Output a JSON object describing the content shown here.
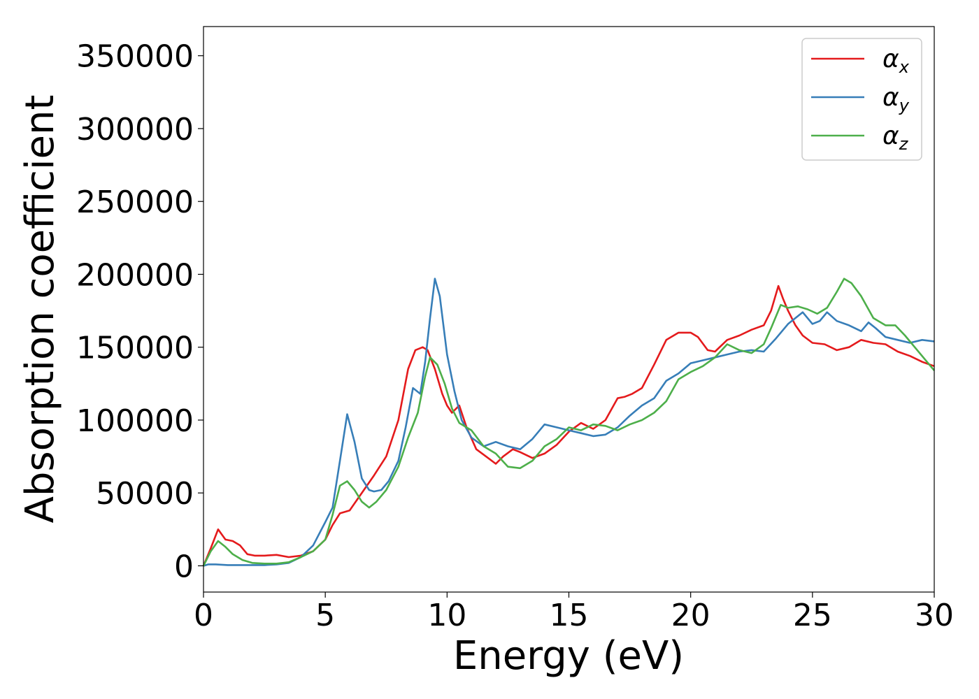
{
  "chart_data": {
    "type": "line",
    "xlabel": "Energy (eV)",
    "ylabel": "Absorption coefficient",
    "xlim": [
      0,
      30
    ],
    "ylim": [
      -18000,
      370000
    ],
    "xticks": [
      0,
      5,
      10,
      15,
      20,
      25,
      30
    ],
    "yticks": [
      0,
      50000,
      100000,
      150000,
      200000,
      250000,
      300000,
      350000
    ],
    "grid": false,
    "legend_position": "top-right",
    "series": [
      {
        "name": "α_x",
        "name_base": "α",
        "name_sub": "x",
        "color": "#e41a1c",
        "x": [
          0,
          0.3,
          0.6,
          0.9,
          1.2,
          1.5,
          1.8,
          2.1,
          2.5,
          3.0,
          3.5,
          4.0,
          4.5,
          5.0,
          5.3,
          5.6,
          6.0,
          6.5,
          7.0,
          7.5,
          8.0,
          8.4,
          8.7,
          9.0,
          9.2,
          9.5,
          9.8,
          10.0,
          10.2,
          10.5,
          10.8,
          11.2,
          11.6,
          12.0,
          12.3,
          12.7,
          13.0,
          13.5,
          14.0,
          14.5,
          15.0,
          15.5,
          16.0,
          16.5,
          17.0,
          17.3,
          17.6,
          18.0,
          18.5,
          19.0,
          19.5,
          20.0,
          20.3,
          20.7,
          21.0,
          21.5,
          22.0,
          22.5,
          23.0,
          23.3,
          23.6,
          23.8,
          24.0,
          24.3,
          24.6,
          25.0,
          25.5,
          26.0,
          26.5,
          27.0,
          27.5,
          28.0,
          28.5,
          29.0,
          29.5,
          30.0
        ],
        "y": [
          0,
          12000,
          25000,
          18000,
          17000,
          14000,
          8000,
          7000,
          7000,
          7500,
          6000,
          7000,
          10000,
          18000,
          28000,
          36000,
          38000,
          50000,
          62000,
          75000,
          100000,
          135000,
          148000,
          150000,
          148000,
          135000,
          118000,
          110000,
          105000,
          110000,
          95000,
          80000,
          75000,
          70000,
          75000,
          80000,
          78000,
          74000,
          77000,
          83000,
          92000,
          98000,
          94000,
          100000,
          115000,
          116000,
          118000,
          122000,
          138000,
          155000,
          160000,
          160000,
          157000,
          148000,
          147000,
          155000,
          158000,
          162000,
          165000,
          175000,
          192000,
          183000,
          175000,
          165000,
          158000,
          153000,
          152000,
          148000,
          150000,
          155000,
          153000,
          152000,
          147000,
          144000,
          140000,
          137000
        ]
      },
      {
        "name": "α_y",
        "name_base": "α",
        "name_sub": "y",
        "color": "#377eb8",
        "x": [
          0,
          0.2,
          0.5,
          1.0,
          1.5,
          2.0,
          2.5,
          3.0,
          3.5,
          4.0,
          4.5,
          5.0,
          5.3,
          5.6,
          5.9,
          6.2,
          6.5,
          6.8,
          7.0,
          7.3,
          7.6,
          8.0,
          8.3,
          8.6,
          8.9,
          9.1,
          9.3,
          9.5,
          9.7,
          10.0,
          10.3,
          10.6,
          11.0,
          11.5,
          12.0,
          12.5,
          13.0,
          13.5,
          14.0,
          14.5,
          15.0,
          15.5,
          16.0,
          16.5,
          17.0,
          17.5,
          18.0,
          18.5,
          19.0,
          19.5,
          20.0,
          20.5,
          21.0,
          21.5,
          22.0,
          22.5,
          23.0,
          23.5,
          24.0,
          24.3,
          24.6,
          25.0,
          25.3,
          25.6,
          26.0,
          26.5,
          27.0,
          27.3,
          27.6,
          28.0,
          28.5,
          29.0,
          29.5,
          30.0
        ],
        "y": [
          0,
          1000,
          1000,
          500,
          500,
          500,
          500,
          1000,
          2000,
          6000,
          14000,
          30000,
          40000,
          72000,
          104000,
          85000,
          60000,
          52000,
          51000,
          52000,
          58000,
          72000,
          95000,
          122000,
          118000,
          140000,
          170000,
          197000,
          185000,
          145000,
          120000,
          100000,
          88000,
          82000,
          85000,
          82000,
          80000,
          87000,
          97000,
          95000,
          93000,
          91000,
          89000,
          90000,
          95000,
          103000,
          110000,
          115000,
          127000,
          132000,
          139000,
          141000,
          143000,
          145000,
          147000,
          148000,
          147000,
          156000,
          166000,
          170000,
          174000,
          166000,
          168000,
          174000,
          168000,
          165000,
          161000,
          167000,
          163000,
          157000,
          155000,
          153000,
          155000,
          154000
        ]
      },
      {
        "name": "α_z",
        "name_base": "α",
        "name_sub": "z",
        "color": "#4daf4a",
        "x": [
          0,
          0.3,
          0.6,
          0.9,
          1.2,
          1.6,
          2.0,
          2.5,
          3.0,
          3.5,
          4.0,
          4.5,
          5.0,
          5.3,
          5.6,
          5.9,
          6.2,
          6.5,
          6.8,
          7.1,
          7.5,
          8.0,
          8.4,
          8.8,
          9.1,
          9.3,
          9.6,
          9.9,
          10.2,
          10.5,
          11.0,
          11.5,
          12.0,
          12.5,
          13.0,
          13.5,
          14.0,
          14.5,
          15.0,
          15.5,
          16.0,
          16.5,
          17.0,
          17.5,
          18.0,
          18.5,
          19.0,
          19.5,
          20.0,
          20.5,
          21.0,
          21.5,
          22.0,
          22.5,
          23.0,
          23.3,
          23.7,
          24.0,
          24.4,
          24.8,
          25.2,
          25.6,
          26.0,
          26.3,
          26.6,
          27.0,
          27.5,
          28.0,
          28.4,
          28.8,
          29.2,
          29.6,
          30.0
        ],
        "y": [
          0,
          10000,
          17000,
          13000,
          8000,
          4000,
          2000,
          1500,
          1500,
          2500,
          6000,
          10000,
          18000,
          35000,
          55000,
          58000,
          52000,
          44000,
          40000,
          44000,
          52000,
          68000,
          88000,
          105000,
          130000,
          143000,
          138000,
          125000,
          108000,
          98000,
          93000,
          82000,
          77000,
          68000,
          67000,
          72000,
          82000,
          87000,
          95000,
          93000,
          97000,
          96000,
          93000,
          97000,
          100000,
          105000,
          113000,
          128000,
          133000,
          137000,
          143000,
          152000,
          148000,
          146000,
          152000,
          163000,
          179000,
          177000,
          178000,
          176000,
          173000,
          177000,
          188000,
          197000,
          194000,
          185000,
          170000,
          165000,
          165000,
          158000,
          150000,
          142000,
          134000
        ]
      }
    ]
  }
}
